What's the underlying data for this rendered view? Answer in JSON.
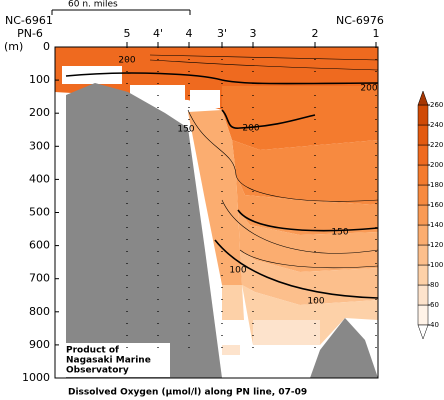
{
  "chart_data": {
    "type": "section",
    "scale_label": "60 n. miles",
    "station_ids": [
      "NC-6961",
      "NC-6976"
    ],
    "stations": [
      "PN-6",
      "5",
      "4'",
      "4",
      "3'",
      "3",
      "2",
      "1"
    ],
    "ylabel": "(m)",
    "ylim": [
      0,
      1000
    ],
    "yticks": [
      0,
      100,
      200,
      300,
      400,
      500,
      600,
      700,
      800,
      900,
      1000
    ],
    "contour_labels": [
      200,
      200,
      150,
      200,
      150,
      100,
      100
    ],
    "credit": [
      "Product of",
      "Nagasaki Marine",
      "Observatory"
    ],
    "caption": "Dissolved Oxygen (μmol/l) along PN line, 07-09",
    "colorbar": {
      "ticks": [
        40,
        60,
        80,
        100,
        120,
        140,
        160,
        180,
        200,
        220,
        240,
        260
      ],
      "colors": [
        "#fff3e8",
        "#fde3cc",
        "#fdd1a8",
        "#fcbf8c",
        "#fbad70",
        "#f99a55",
        "#f78a40",
        "#f47b2e",
        "#ef6a1f",
        "#e35a10",
        "#d04a06"
      ],
      "under": "#ffffff",
      "over": "#a63603"
    }
  }
}
